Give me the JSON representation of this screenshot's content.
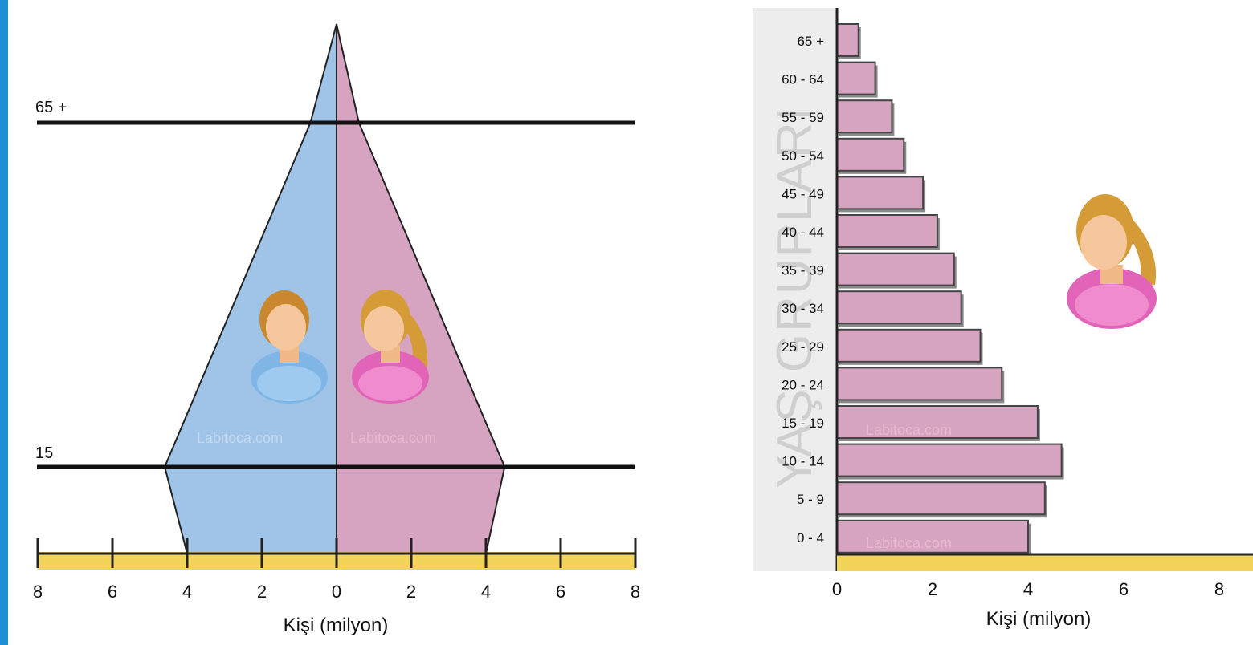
{
  "charts": {
    "left": {
      "levels": {
        "upper": "65 +",
        "lower": "15"
      },
      "ticks": [
        "8",
        "6",
        "4",
        "2",
        "0",
        "2",
        "4",
        "6",
        "8"
      ],
      "xlabel": "Kişi (milyon)",
      "watermark_left": "Labitoca.com",
      "watermark_right": "Labitoca.com"
    },
    "right": {
      "ticks": [
        "0",
        "2",
        "4",
        "6",
        "8"
      ],
      "xlabel": "Kişi (milyon)",
      "ylabel": "YAŞ GRUPLARI",
      "watermark_mid": "Labitoca.com",
      "watermark_low": "Labitoca.com"
    }
  },
  "chart_data": [
    {
      "type": "area",
      "xlim": [
        -8,
        8
      ],
      "series": [
        {
          "name": "",
          "color": "#a0c4e8",
          "points": [
            [
              -4,
              0
            ],
            [
              -4.6,
              15
            ],
            [
              -0.7,
              65
            ],
            [
              0,
              100
            ]
          ]
        },
        {
          "name": "",
          "color": "#d6a3c0",
          "points": [
            [
              4,
              0
            ],
            [
              4.5,
              15
            ],
            [
              0.6,
              65
            ],
            [
              0,
              100
            ]
          ]
        }
      ],
      "reference_lines": [
        15,
        65
      ],
      "grid": false
    },
    {
      "type": "bar",
      "orientation": "horizontal",
      "xlim": [
        0,
        8.5
      ],
      "color": "#d6a3c0",
      "categories": [
        "65 +",
        "60 - 64",
        "55 - 59",
        "50 - 54",
        "45 - 49",
        "40 - 44",
        "35 - 39",
        "30 - 34",
        "25 - 29",
        "20 - 24",
        "15 - 19",
        "10 - 14",
        "5 - 9",
        "0 - 4"
      ],
      "values": [
        0.45,
        0.8,
        1.15,
        1.4,
        1.8,
        2.1,
        2.45,
        2.6,
        3.0,
        3.45,
        4.2,
        4.7,
        4.35,
        4.0
      ],
      "grid": false
    }
  ]
}
